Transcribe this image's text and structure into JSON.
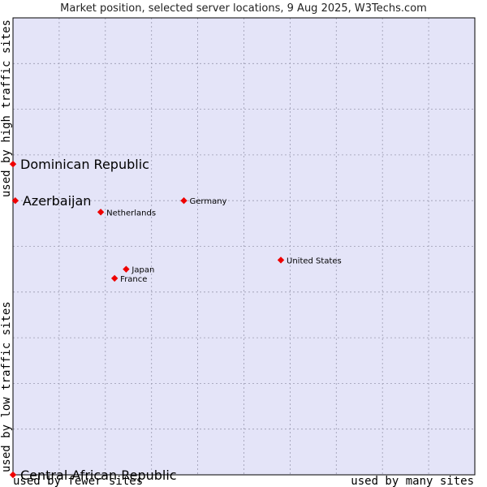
{
  "chart_data": {
    "type": "scatter",
    "title": "Market position, selected server locations, 9 Aug 2025, W3Techs.com",
    "x_axis": {
      "low_label": "used by fewer sites",
      "high_label": "used by many sites",
      "range": [
        0,
        10
      ],
      "grid": true
    },
    "y_axis": {
      "low_label": "used by low traffic sites",
      "high_label": "used by high traffic sites",
      "range": [
        0,
        10
      ],
      "grid": true
    },
    "points": [
      {
        "label": "Dominican Republic",
        "x": 0.0,
        "y": 6.8,
        "highlight": true
      },
      {
        "label": "Azerbaijan",
        "x": 0.05,
        "y": 6.0,
        "highlight": true
      },
      {
        "label": "Netherlands",
        "x": 1.9,
        "y": 5.75,
        "highlight": false
      },
      {
        "label": "Germany",
        "x": 3.7,
        "y": 6.0,
        "highlight": false
      },
      {
        "label": "United States",
        "x": 5.8,
        "y": 4.7,
        "highlight": false
      },
      {
        "label": "Japan",
        "x": 2.45,
        "y": 4.5,
        "highlight": false
      },
      {
        "label": "France",
        "x": 2.2,
        "y": 4.3,
        "highlight": false
      },
      {
        "label": "Central African Republic",
        "x": 0.0,
        "y": 0.0,
        "highlight": true
      }
    ],
    "colors": {
      "plot_background": "#e4e4f8",
      "grid": "#9a9ab0",
      "marker": "#ee0000",
      "border": "#000000"
    }
  }
}
